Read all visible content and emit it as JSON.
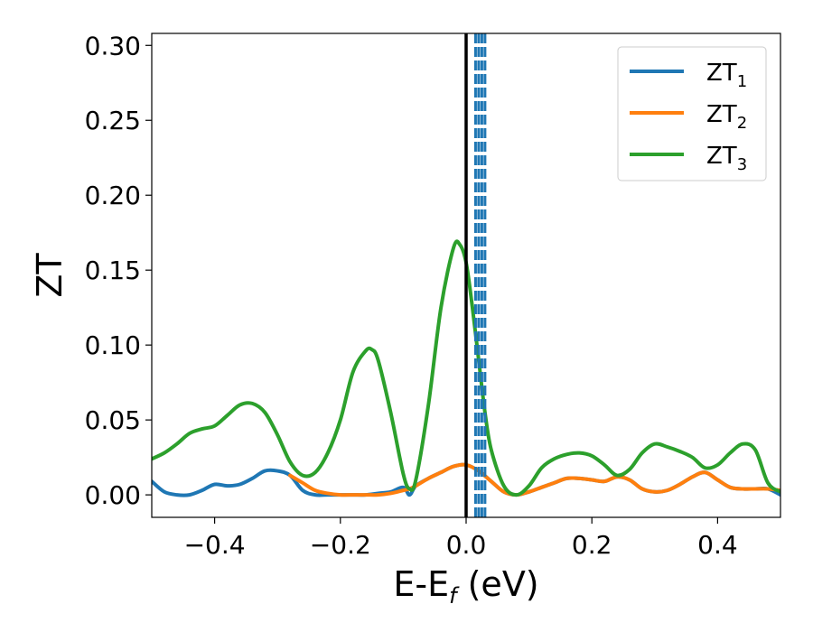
{
  "chart_data": {
    "type": "line",
    "xlabel": "E-E",
    "xlabel_subscript": "f",
    "xlabel_unit": " (eV)",
    "ylabel": "ZT",
    "xlim": [
      -0.5,
      0.5
    ],
    "ylim": [
      -0.015,
      0.308
    ],
    "x_ticks": [
      -0.4,
      -0.2,
      0.0,
      0.2,
      0.4
    ],
    "x_tick_labels": [
      "−0.4",
      "−0.2",
      "0.0",
      "0.2",
      "0.4"
    ],
    "y_ticks": [
      0.0,
      0.05,
      0.1,
      0.15,
      0.2,
      0.25,
      0.3
    ],
    "y_tick_labels": [
      "0.00",
      "0.05",
      "0.10",
      "0.15",
      "0.20",
      "0.25",
      "0.30"
    ],
    "grid": false,
    "legend_position": "top-right",
    "vertical_lines": [
      {
        "x": 0.0,
        "color": "#000000",
        "style": "solid"
      },
      {
        "x": 0.015,
        "color": "#1f77b4",
        "style": "dashed"
      },
      {
        "x": 0.02,
        "color": "#1f77b4",
        "style": "dashed"
      },
      {
        "x": 0.025,
        "color": "#1f77b4",
        "style": "dashed"
      },
      {
        "x": 0.03,
        "color": "#1f77b4",
        "style": "dashed"
      }
    ],
    "series": [
      {
        "name": "ZT",
        "subscript": "1",
        "color": "#1f77b4",
        "x": [
          -0.5,
          -0.48,
          -0.46,
          -0.44,
          -0.42,
          -0.4,
          -0.38,
          -0.36,
          -0.34,
          -0.32,
          -0.3,
          -0.28,
          -0.26,
          -0.24,
          -0.22,
          -0.2,
          -0.18,
          -0.16,
          -0.14,
          -0.12,
          -0.1,
          -0.09,
          -0.08,
          -0.06,
          -0.04,
          -0.02,
          0.0,
          0.02,
          0.04,
          0.06,
          0.08,
          0.1,
          0.12,
          0.14,
          0.16,
          0.18,
          0.2,
          0.22,
          0.24,
          0.26,
          0.28,
          0.3,
          0.32,
          0.34,
          0.36,
          0.38,
          0.4,
          0.42,
          0.44,
          0.46,
          0.48,
          0.5
        ],
        "y": [
          0.009,
          0.002,
          0.0,
          0.0,
          0.003,
          0.007,
          0.006,
          0.007,
          0.011,
          0.016,
          0.016,
          0.013,
          0.003,
          0.0,
          0.0,
          0.0,
          0.0,
          0.0,
          0.001,
          0.002,
          0.005,
          0.0,
          0.006,
          0.011,
          0.015,
          0.019,
          0.02,
          0.016,
          0.009,
          0.002,
          0.0,
          0.002,
          0.005,
          0.008,
          0.011,
          0.011,
          0.01,
          0.009,
          0.012,
          0.01,
          0.004,
          0.002,
          0.003,
          0.007,
          0.012,
          0.015,
          0.01,
          0.005,
          0.004,
          0.004,
          0.004,
          0.0
        ]
      },
      {
        "name": "ZT",
        "subscript": "2",
        "color": "#ff7f0e",
        "x": [
          -0.28,
          -0.26,
          -0.24,
          -0.22,
          -0.2,
          -0.18,
          -0.16,
          -0.14,
          -0.12,
          -0.1,
          -0.09,
          -0.08,
          -0.06,
          -0.04,
          -0.02,
          0.0,
          0.02,
          0.04,
          0.06,
          0.08,
          0.1,
          0.12,
          0.14,
          0.16,
          0.18,
          0.2,
          0.22,
          0.24,
          0.26,
          0.28,
          0.3,
          0.32,
          0.34,
          0.36,
          0.38,
          0.4,
          0.42,
          0.44,
          0.46,
          0.48,
          0.5
        ],
        "y": [
          0.013,
          0.008,
          0.003,
          0.001,
          0.0,
          0.0,
          0.0,
          0.0,
          0.001,
          0.003,
          0.004,
          0.006,
          0.011,
          0.015,
          0.019,
          0.02,
          0.016,
          0.009,
          0.002,
          0.0,
          0.002,
          0.005,
          0.008,
          0.011,
          0.011,
          0.01,
          0.009,
          0.012,
          0.01,
          0.004,
          0.002,
          0.003,
          0.007,
          0.012,
          0.015,
          0.01,
          0.005,
          0.004,
          0.004,
          0.004,
          0.003
        ]
      },
      {
        "name": "ZT",
        "subscript": "3",
        "color": "#2ca02c",
        "x": [
          -0.5,
          -0.48,
          -0.46,
          -0.44,
          -0.42,
          -0.4,
          -0.38,
          -0.36,
          -0.34,
          -0.32,
          -0.3,
          -0.28,
          -0.26,
          -0.24,
          -0.22,
          -0.2,
          -0.18,
          -0.16,
          -0.15,
          -0.14,
          -0.12,
          -0.1,
          -0.09,
          -0.08,
          -0.06,
          -0.04,
          -0.02,
          -0.01,
          0.0,
          0.01,
          0.02,
          0.03,
          0.04,
          0.06,
          0.08,
          0.1,
          0.12,
          0.14,
          0.16,
          0.18,
          0.2,
          0.22,
          0.24,
          0.26,
          0.28,
          0.3,
          0.32,
          0.34,
          0.36,
          0.38,
          0.4,
          0.42,
          0.44,
          0.46,
          0.48,
          0.5
        ],
        "y": [
          0.024,
          0.028,
          0.034,
          0.041,
          0.044,
          0.046,
          0.053,
          0.06,
          0.061,
          0.055,
          0.04,
          0.022,
          0.013,
          0.015,
          0.028,
          0.05,
          0.082,
          0.096,
          0.097,
          0.09,
          0.055,
          0.014,
          0.004,
          0.01,
          0.06,
          0.125,
          0.165,
          0.167,
          0.155,
          0.125,
          0.09,
          0.055,
          0.03,
          0.006,
          0.0,
          0.006,
          0.018,
          0.024,
          0.027,
          0.028,
          0.026,
          0.02,
          0.013,
          0.017,
          0.028,
          0.034,
          0.032,
          0.029,
          0.025,
          0.018,
          0.02,
          0.028,
          0.034,
          0.03,
          0.008,
          0.002
        ]
      }
    ]
  }
}
